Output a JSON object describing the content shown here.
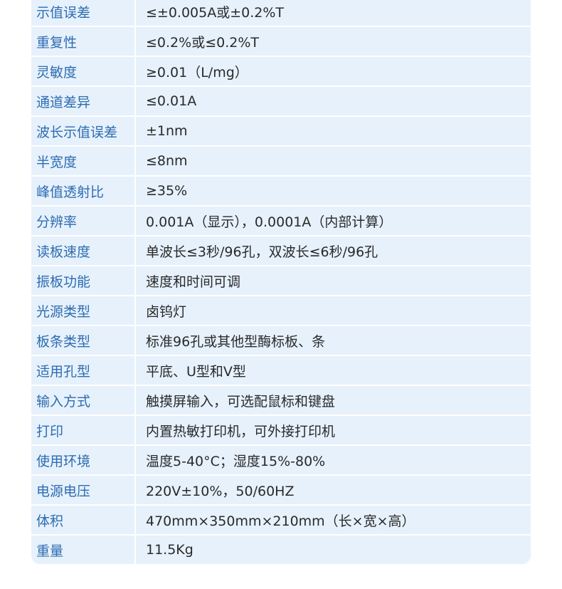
{
  "specs": [
    {
      "label": "示值误差",
      "value": "≤±0.005A或±0.2%T"
    },
    {
      "label": "重复性",
      "value": "≤0.2%或≤0.2%T"
    },
    {
      "label": "灵敏度",
      "value": "≥0.01（L/mg）"
    },
    {
      "label": "通道差异",
      "value": "≤0.01A"
    },
    {
      "label": "波长示值误差",
      "value": "±1nm"
    },
    {
      "label": "半宽度",
      "value": "≤8nm"
    },
    {
      "label": "峰值透射比",
      "value": "≥35%"
    },
    {
      "label": "分辨率",
      "value": "0.001A（显示），0.0001A（内部计算）"
    },
    {
      "label": "读板速度",
      "value": "单波长≤3秒/96孔，双波长≤6秒/96孔"
    },
    {
      "label": "振板功能",
      "value": "速度和时间可调"
    },
    {
      "label": "光源类型",
      "value": "卤钨灯"
    },
    {
      "label": "板条类型",
      "value": "标准96孔或其他型酶标板、条"
    },
    {
      "label": "适用孔型",
      "value": "平底、U型和V型"
    },
    {
      "label": "输入方式",
      "value": "触摸屏输入，可选配鼠标和键盘"
    },
    {
      "label": "打印",
      "value": "内置热敏打印机，可外接打印机"
    },
    {
      "label": "使用环境",
      "value": "温度5-40°C；湿度15%-80%"
    },
    {
      "label": "电源电压",
      "value": "220V±10%，50/60HZ"
    },
    {
      "label": "体积",
      "value": "470mm×350mm×210mm（长×宽×高）"
    },
    {
      "label": "重量",
      "value": "11.5Kg"
    }
  ],
  "colors": {
    "label": "#2e6cb0",
    "cell_bg": "#e6f1fc"
  }
}
